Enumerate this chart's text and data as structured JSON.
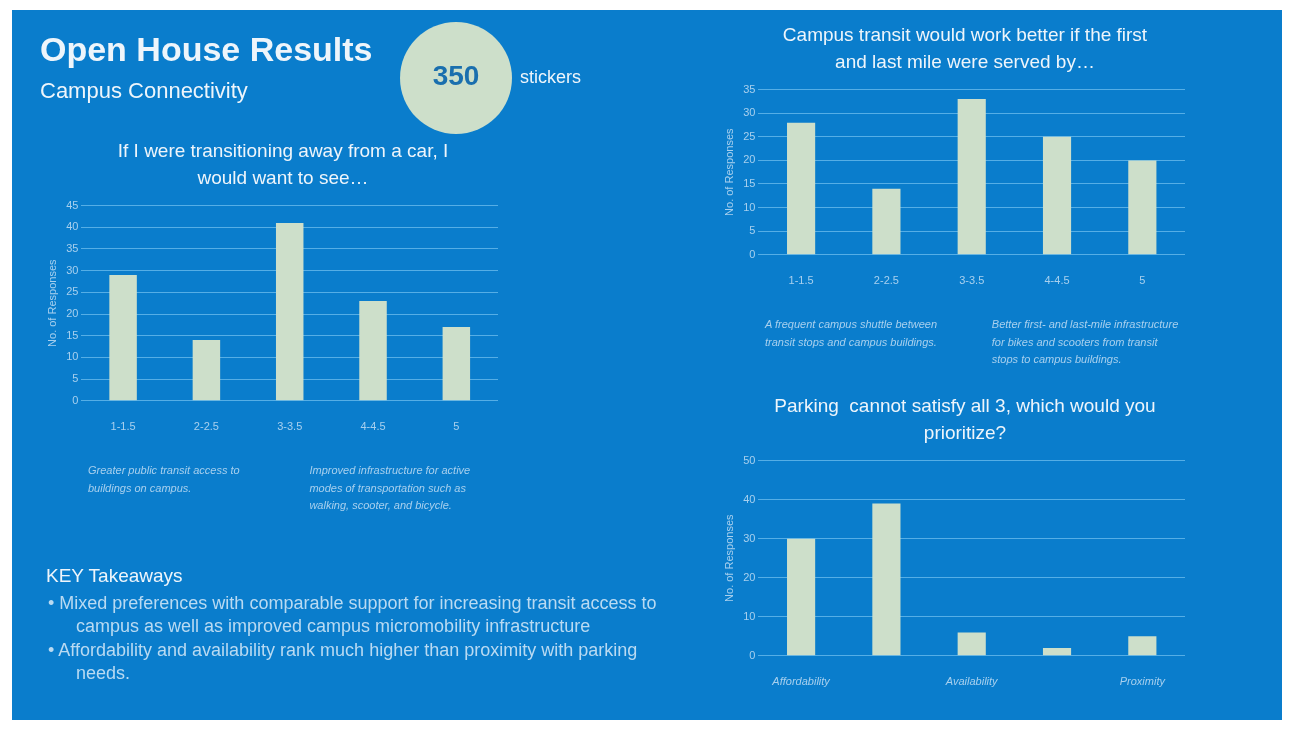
{
  "chart_data": [
    {
      "type": "other",
      "title": "Open House Results",
      "subtitle": "Campus Connectivity",
      "annotations": [
        "350",
        "stickers",
        "KEY Takeaways",
        "• Mixed preferences with comparable support for increasing transit access to campus as well as improved campus micromobility infrastructure",
        "• Affordability and availability rank much higher than proximity with parking needs."
      ]
    },
    {
      "type": "bar",
      "title": "If I were transitioning away from a car, I would want to see…",
      "ylabel": "No. of Responses",
      "categories": [
        "1-1.5",
        "2-2.5",
        "3-3.5",
        "4-4.5",
        "5"
      ],
      "values": [
        29,
        14,
        41,
        23,
        17
      ],
      "color": "#cddfca",
      "ylim": [
        0,
        45
      ],
      "yticks": [
        0,
        5,
        10,
        15,
        20,
        25,
        30,
        35,
        40,
        45
      ],
      "grid": "y",
      "annotations": [
        "Greater public transit access to buildings on campus.",
        "Improved infrastructure for active modes of transportation such as walking, scooter, and bicycle."
      ]
    },
    {
      "type": "bar",
      "title": "Campus transit would work better if the first and last mile were served by…",
      "ylabel": "No. of Responses",
      "categories": [
        "1-1.5",
        "2-2.5",
        "3-3.5",
        "4-4.5",
        "5"
      ],
      "values": [
        28,
        14,
        33,
        25,
        20
      ],
      "color": "#cddfca",
      "ylim": [
        0,
        35
      ],
      "yticks": [
        0,
        5,
        10,
        15,
        20,
        25,
        30,
        35
      ],
      "grid": "y",
      "annotations": [
        "A frequent campus shuttle between transit stops and campus buildings.",
        "Better first- and last-mile infrastructure for bikes and scooters from transit stops to campus buildings."
      ]
    },
    {
      "type": "bar",
      "title": "Parking  cannot satisfy all 3, which would you prioritize?",
      "ylabel": "No. of Responses",
      "categories": [
        "Affordability",
        null,
        "Availability",
        null,
        "Proximity"
      ],
      "values": [
        30,
        39,
        6,
        2,
        5
      ],
      "color": "#cddfca",
      "ylim": [
        0,
        50
      ],
      "yticks": [
        0,
        10,
        20,
        30,
        40,
        50
      ],
      "grid": "y"
    }
  ]
}
